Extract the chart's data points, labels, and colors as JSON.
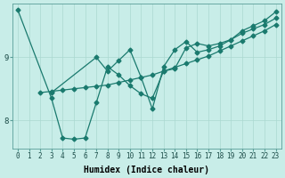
{
  "xlabel": "Humidex (Indice chaleur)",
  "bg_color": "#c8ede8",
  "line_color": "#1a7a6e",
  "grid_color": "#aad8d0",
  "xlim": [
    -0.5,
    23.5
  ],
  "ylim": [
    7.55,
    9.85
  ],
  "yticks": [
    8,
    9
  ],
  "xticks": [
    0,
    1,
    2,
    3,
    4,
    5,
    6,
    7,
    8,
    9,
    10,
    11,
    12,
    13,
    14,
    15,
    16,
    17,
    18,
    19,
    20,
    21,
    22,
    23
  ],
  "line1_x": [
    2,
    3,
    4,
    5,
    6,
    7,
    8,
    9,
    10,
    11,
    12,
    13,
    14,
    15,
    16,
    17,
    18,
    19,
    20,
    21,
    22,
    23
  ],
  "line1_y": [
    8.44,
    8.46,
    8.48,
    8.5,
    8.52,
    8.54,
    8.56,
    8.6,
    8.64,
    8.68,
    8.72,
    8.78,
    8.84,
    8.9,
    8.96,
    9.02,
    9.1,
    9.18,
    9.26,
    9.34,
    9.42,
    9.52
  ],
  "line2_x": [
    0,
    3,
    4,
    5,
    6,
    7,
    8,
    9,
    10,
    11,
    12,
    13,
    14,
    15,
    16,
    17,
    18,
    19,
    20,
    21,
    22,
    23
  ],
  "line2_y": [
    9.75,
    8.35,
    7.72,
    7.7,
    7.72,
    8.28,
    8.85,
    8.72,
    8.55,
    8.42,
    8.35,
    8.78,
    8.82,
    9.15,
    9.22,
    9.18,
    9.22,
    9.28,
    9.42,
    9.5,
    9.58,
    9.72
  ],
  "line3_x": [
    3,
    7,
    8,
    9,
    10,
    11,
    12,
    13,
    14,
    15,
    16,
    17,
    18,
    19,
    20,
    21,
    22,
    23
  ],
  "line3_y": [
    8.44,
    9.0,
    8.78,
    8.95,
    9.12,
    8.68,
    8.18,
    8.85,
    9.12,
    9.25,
    9.08,
    9.12,
    9.18,
    9.28,
    9.38,
    9.45,
    9.52,
    9.62
  ],
  "marker": "D",
  "markersize": 2.5,
  "linewidth": 0.9,
  "tick_fontsize": 5.5,
  "axis_fontsize": 7
}
